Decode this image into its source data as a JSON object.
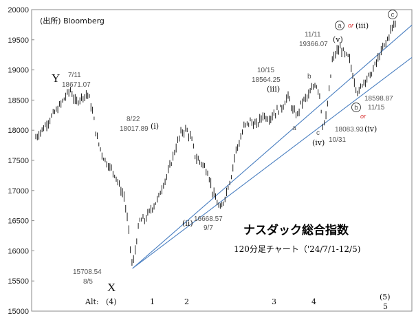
{
  "chart_data": {
    "type": "line",
    "style": "ohlc-bars",
    "title": "ナスダック総合指数",
    "subtitle": "120分足チャート（'24/7/1-12/5)",
    "source": "(出所) Bloomberg",
    "ylim": [
      15000,
      20000
    ],
    "yticks": [
      "15000",
      "15500",
      "16000",
      "16500",
      "17000",
      "17500",
      "18000",
      "18500",
      "19000",
      "19500",
      "20000"
    ],
    "grid": false,
    "price_path": [
      [
        0,
        17880
      ],
      [
        8,
        18050
      ],
      [
        16,
        18250
      ],
      [
        22,
        18380
      ],
      [
        28,
        18550
      ],
      [
        33,
        18671
      ],
      [
        38,
        18450
      ],
      [
        44,
        18560
      ],
      [
        50,
        18600
      ],
      [
        55,
        18220
      ],
      [
        58,
        17880
      ],
      [
        64,
        17560
      ],
      [
        70,
        17400
      ],
      [
        76,
        17250
      ],
      [
        80,
        17050
      ],
      [
        84,
        16900
      ],
      [
        88,
        16400
      ],
      [
        92,
        15708
      ],
      [
        96,
        16200
      ],
      [
        99,
        16500
      ],
      [
        104,
        16520
      ],
      [
        110,
        16700
      ],
      [
        116,
        16850
      ],
      [
        120,
        17050
      ],
      [
        126,
        17300
      ],
      [
        132,
        17650
      ],
      [
        138,
        17950
      ],
      [
        143,
        18017
      ],
      [
        148,
        17850
      ],
      [
        152,
        17550
      ],
      [
        158,
        17450
      ],
      [
        164,
        17300
      ],
      [
        168,
        16990
      ],
      [
        172,
        16820
      ],
      [
        176,
        16668
      ],
      [
        180,
        16900
      ],
      [
        186,
        17250
      ],
      [
        190,
        17650
      ],
      [
        194,
        17820
      ],
      [
        198,
        18050
      ],
      [
        204,
        18150
      ],
      [
        210,
        18080
      ],
      [
        216,
        18250
      ],
      [
        222,
        18200
      ],
      [
        228,
        18300
      ],
      [
        234,
        18380
      ],
      [
        240,
        18564
      ],
      [
        245,
        18300
      ],
      [
        249,
        18250
      ],
      [
        252,
        18430
      ],
      [
        256,
        18520
      ],
      [
        259,
        18560
      ],
      [
        262,
        18650
      ],
      [
        266,
        18790
      ],
      [
        270,
        18600
      ],
      [
        273,
        18083
      ],
      [
        276,
        18200
      ],
      [
        279,
        18650
      ],
      [
        282,
        19150
      ],
      [
        286,
        19300
      ],
      [
        290,
        19366
      ],
      [
        294,
        19250
      ],
      [
        298,
        19200
      ],
      [
        301,
        18950
      ],
      [
        304,
        18750
      ],
      [
        307,
        18598
      ],
      [
        310,
        18760
      ],
      [
        314,
        18860
      ],
      [
        318,
        18900
      ],
      [
        322,
        19050
      ],
      [
        326,
        19200
      ],
      [
        330,
        19350
      ],
      [
        334,
        19480
      ],
      [
        338,
        19680
      ],
      [
        342,
        19780
      ]
    ],
    "x_range": [
      0,
      342
    ],
    "trendlines": [
      {
        "name": "upper",
        "from": [
          92,
          15708
        ],
        "to": [
          364,
          19840
        ]
      },
      {
        "name": "lower",
        "from": [
          92,
          15708
        ],
        "to": [
          364,
          19290
        ]
      }
    ],
    "annotations": {
      "source_label": "(出所) Bloomberg",
      "wave_Y": "Y",
      "peak_Y_date": "7/11",
      "peak_Y_value": "18671.07",
      "wave_X": "X",
      "low_X_value": "15708.54",
      "low_X_date": "8/5",
      "point_i_date": "8/22",
      "point_i_value": "18017.89",
      "wave_i": "(ⅰ)",
      "wave_ii": "(ⅱ)",
      "point_ii_value": "16668.57",
      "point_ii_date": "9/7",
      "point_iii_date": "10/15",
      "point_iii_value": "18564.25",
      "wave_iii": "(ⅲ)",
      "sub_a": "a",
      "sub_b": "b",
      "sub_c": "c",
      "wave_iv": "(ⅳ)",
      "point_iv_value": "18083.93",
      "point_iv_date": "10/31",
      "point_v_date": "11/11",
      "point_v_value": "19366.07",
      "wave_v": "(ⅴ)",
      "circle_a": "a",
      "or_1": "or",
      "wave_iii_alt": "(ⅲ)",
      "circle_b": "b",
      "or_2": "or",
      "point_iv2_value": "18598.87",
      "point_iv2_date": "11/15",
      "wave_iv_alt": "(ⅳ)",
      "circle_c": "c",
      "wave_5_paren": "(5)",
      "alt_label": "Alt:",
      "alt_4": "(4)",
      "alt_1": "1",
      "alt_2": "2",
      "alt_3": "3",
      "alt_4b": "4",
      "alt_5": "5"
    }
  },
  "colors": {
    "price": "#1a1a1a",
    "trendline": "#4a7fc1",
    "axis": "#888888",
    "accent_red": "#d83030"
  }
}
